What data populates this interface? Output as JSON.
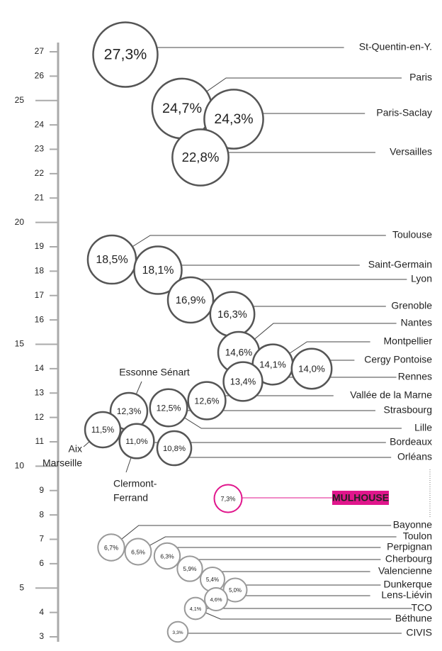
{
  "chart_data": {
    "type": "bubble",
    "yticks": [
      3,
      4,
      5,
      6,
      7,
      8,
      9,
      10,
      11,
      12,
      13,
      14,
      15,
      16,
      17,
      18,
      19,
      20,
      21,
      22,
      23,
      24,
      25,
      26,
      27
    ],
    "ylim": [
      3,
      27
    ],
    "series": [
      {
        "color": "#555555",
        "points": [
          {
            "value": 27.3,
            "value_label": "27,3%",
            "names": [
              [
                "St-Quentin-en-Y."
              ]
            ]
          },
          {
            "value": 24.7,
            "value_label": "24,7%",
            "names": [
              [
                "Paris"
              ]
            ]
          },
          {
            "value": 24.3,
            "value_label": "24,3%",
            "names": [
              [
                "Paris-Saclay"
              ]
            ]
          },
          {
            "value": 22.8,
            "value_label": "22,8%",
            "names": [
              [
                "Versailles"
              ]
            ]
          },
          {
            "value": 18.5,
            "value_label": "18,5%",
            "names": [
              [
                "Toulouse"
              ]
            ]
          },
          {
            "value": 18.1,
            "value_label": "18,1%",
            "names": [
              [
                "Saint-Germain"
              ]
            ]
          },
          {
            "value": 16.9,
            "value_label": "16,9%",
            "names": [
              [
                "Lyon"
              ]
            ]
          },
          {
            "value": 16.3,
            "value_label": "16,3%",
            "names": [
              [
                "Grenoble"
              ]
            ]
          },
          {
            "value": 14.6,
            "value_label": "14,6%",
            "names": [
              [
                "Nantes"
              ]
            ]
          },
          {
            "value": 14.1,
            "value_label": "14,1%",
            "names": [
              [
                "Montpellier"
              ]
            ]
          },
          {
            "value": 14.0,
            "value_label": "14,0%",
            "names": [
              [
                "Cergy Pontoise"
              ]
            ]
          },
          {
            "value": 13.4,
            "value_label": "13,4%",
            "names": [
              [
                "Rennes"
              ]
            ]
          },
          {
            "value": 12.6,
            "value_label": "12,6%",
            "names": [
              [
                "Vallée de la Marne"
              ]
            ]
          },
          {
            "value": 12.5,
            "value_label": "12,5%",
            "names": [
              [
                "Strasbourg"
              ],
              [
                "Lille"
              ]
            ]
          },
          {
            "value": 12.3,
            "value_label": "12,3%",
            "names": [
              [
                "Essonne Sénart"
              ]
            ]
          },
          {
            "value": 11.5,
            "value_label": "11,5%",
            "names": [
              [
                "Aix",
                "Marseille"
              ]
            ]
          },
          {
            "value": 11.0,
            "value_label": "11,0%",
            "names": [
              [
                "Clermont-",
                "Ferrand"
              ],
              [
                "Bordeaux"
              ]
            ]
          },
          {
            "value": 10.8,
            "value_label": "10,8%",
            "names": [
              [
                "Orléans"
              ]
            ]
          }
        ]
      },
      {
        "color": "#e0168c",
        "points": [
          {
            "value": 7.3,
            "value_label": "7,3%",
            "names": [
              [
                "MULHOUSE"
              ]
            ]
          }
        ]
      },
      {
        "color": "#999999",
        "points": [
          {
            "value": 6.7,
            "value_label": "6,7%",
            "names": [
              [
                "Bayonne"
              ]
            ]
          },
          {
            "value": 6.5,
            "value_label": "6,5%",
            "names": [
              [
                "Toulon"
              ]
            ]
          },
          {
            "value": 6.3,
            "value_label": "6,3%",
            "names": [
              [
                "Perpignan"
              ]
            ]
          },
          {
            "value": 5.9,
            "value_label": "5,9%",
            "names": [
              [
                "Cherbourg"
              ]
            ]
          },
          {
            "value": 5.4,
            "value_label": "5,4%",
            "names": [
              [
                "Valencienne"
              ]
            ]
          },
          {
            "value": 5.0,
            "value_label": "5,0%",
            "names": [
              [
                "Dunkerque"
              ]
            ]
          },
          {
            "value": 4.6,
            "value_label": "4,6%",
            "names": [
              [
                "Lens-Liévin"
              ]
            ]
          },
          {
            "value": 4.1,
            "value_label": "4,1%",
            "names": [
              [
                "TCO"
              ],
              [
                "Béthune"
              ]
            ]
          },
          {
            "value": 3.3,
            "value_label": "3,3%",
            "names": [
              [
                "CIVIS"
              ]
            ]
          }
        ]
      }
    ]
  }
}
